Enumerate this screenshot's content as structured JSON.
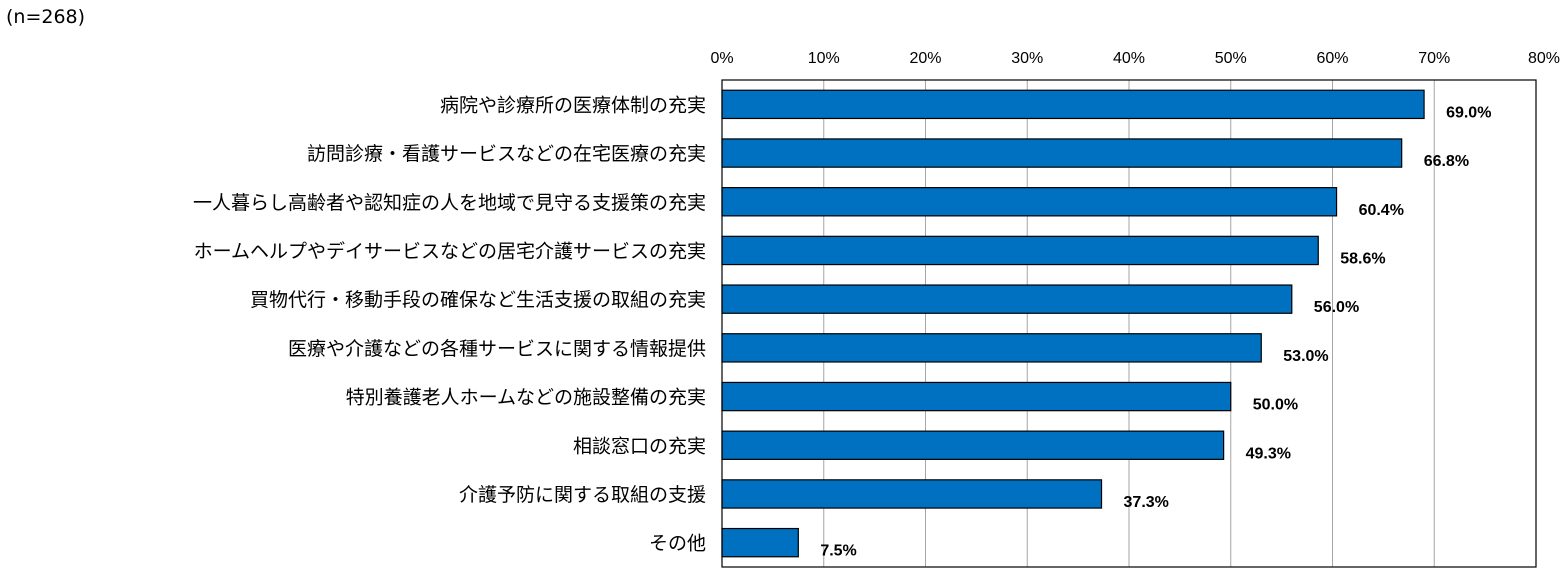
{
  "note": "(n=268)",
  "chart_data": {
    "type": "bar",
    "orientation": "horizontal",
    "categories": [
      "病院や診療所の医療体制の充実",
      "訪問診療・看護サービスなどの在宅医療の充実",
      "一人暮らし高齢者や認知症の人を地域で見守る支援策の充実",
      "ホームヘルプやデイサービスなどの居宅介護サービスの充実",
      "買物代行・移動手段の確保など生活支援の取組の充実",
      "医療や介護などの各種サービスに関する情報提供",
      "特別養護老人ホームなどの施設整備の充実",
      "相談窓口の充実",
      "介護予防に関する取組の支援",
      "その他"
    ],
    "values": [
      69.0,
      66.8,
      60.4,
      58.6,
      56.0,
      53.0,
      50.0,
      49.3,
      37.3,
      7.5
    ],
    "data_labels": [
      "69.0%",
      "66.8%",
      "60.4%",
      "58.6%",
      "56.0%",
      "53.0%",
      "50.0%",
      "49.3%",
      "37.3%",
      "7.5%"
    ],
    "x_ticks": [
      "0%",
      "10%",
      "20%",
      "30%",
      "40%",
      "50%",
      "60%",
      "70%",
      "80%"
    ],
    "xlim": [
      0,
      80
    ],
    "grid": true,
    "bar_color": "#0070C0",
    "bar_edge_color": "#000000",
    "grid_color": "#A6A6A6"
  }
}
